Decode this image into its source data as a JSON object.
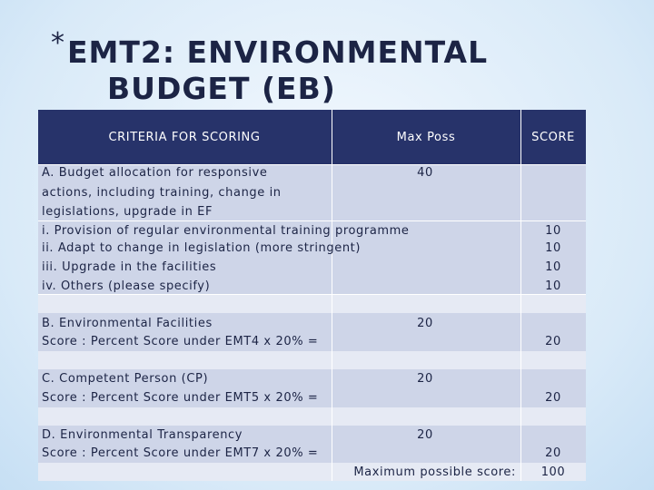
{
  "header": {
    "star": "*",
    "title_lines": [
      "EMT2: ENVIRONMENTAL",
      "BUDGET (EB)"
    ]
  },
  "table": {
    "columns": [
      "CRITERIA FOR SCORING",
      "Max Poss",
      "SCORE"
    ],
    "section_a": {
      "lines": [
        "A. Budget allocation for responsive",
        "actions, including training, change in",
        "legislations, upgrade in EF"
      ],
      "max": 40,
      "items": [
        {
          "label": "i. Provision of regular environmental training programme",
          "score": 10
        },
        {
          "label": "ii. Adapt to change in legislation (more stringent)",
          "score": 10
        },
        {
          "label": "iii. Upgrade in the facilities",
          "score": 10
        },
        {
          "label": "iv. Others (please specify)",
          "score": 10
        }
      ]
    },
    "sections": [
      {
        "lines": [
          "B. Environmental Facilities",
          "Score : Percent Score under EMT4 x 20% ="
        ],
        "max": 20,
        "score": 20
      },
      {
        "lines": [
          "C. Competent Person (CP)",
          "Score : Percent Score under EMT5 x 20% ="
        ],
        "max": 20,
        "score": 20
      },
      {
        "lines": [
          "D. Environmental Transparency",
          "Score : Percent Score under EMT7 x 20% ="
        ],
        "max": 20,
        "score": 20
      }
    ],
    "footer": {
      "label": "Maximum possible score:",
      "score": 100
    }
  }
}
